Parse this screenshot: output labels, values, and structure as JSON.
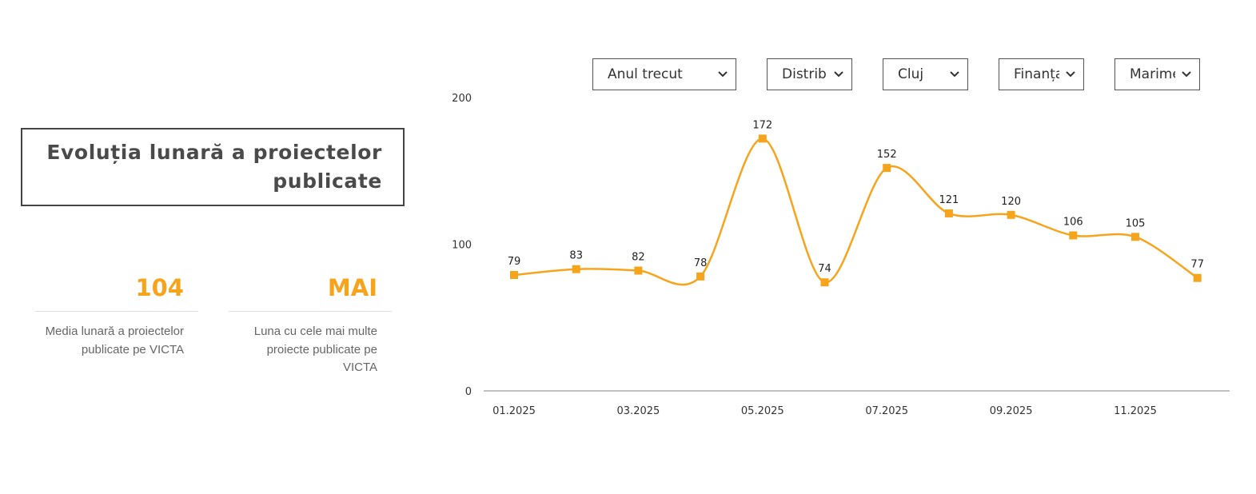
{
  "title": "Evoluția lunară a proiectelor publicate",
  "kpis": [
    {
      "value": "104",
      "description": "Media lunară a proiectelor publicate pe VICTA"
    },
    {
      "value": "MAI",
      "description": "Luna cu cele mai multe proiecte publicate pe VICTA"
    }
  ],
  "filters": [
    {
      "label": "Anul trecut",
      "icon": "chevron-down-icon"
    },
    {
      "label": "Distribuție",
      "icon": "chevron-down-icon"
    },
    {
      "label": "Cluj",
      "icon": "chevron-down-icon"
    },
    {
      "label": "Finanțare",
      "icon": "chevron-down-icon"
    },
    {
      "label": "Marime",
      "icon": "chevron-down-icon"
    }
  ],
  "colors": {
    "accent": "#f7a41d",
    "title_text": "#4a4a4a",
    "kpi_desc": "#666666",
    "axis": "#aaaaaa"
  },
  "chart_data": {
    "type": "line",
    "smooth": true,
    "marker": "square",
    "x": [
      "01.2025",
      "02.2025",
      "03.2025",
      "04.2025",
      "05.2025",
      "06.2025",
      "07.2025",
      "08.2025",
      "09.2025",
      "10.2025",
      "11.2025",
      "12.2025"
    ],
    "x_tick_labels": [
      "01.2025",
      "03.2025",
      "05.2025",
      "07.2025",
      "09.2025",
      "11.2025"
    ],
    "values": [
      79,
      83,
      82,
      78,
      172,
      74,
      152,
      121,
      120,
      106,
      105,
      77
    ],
    "y_ticks": [
      0,
      100,
      200
    ],
    "ylim": [
      0,
      200
    ],
    "grid": false,
    "data_labels": true,
    "color": "#f7a41d"
  }
}
